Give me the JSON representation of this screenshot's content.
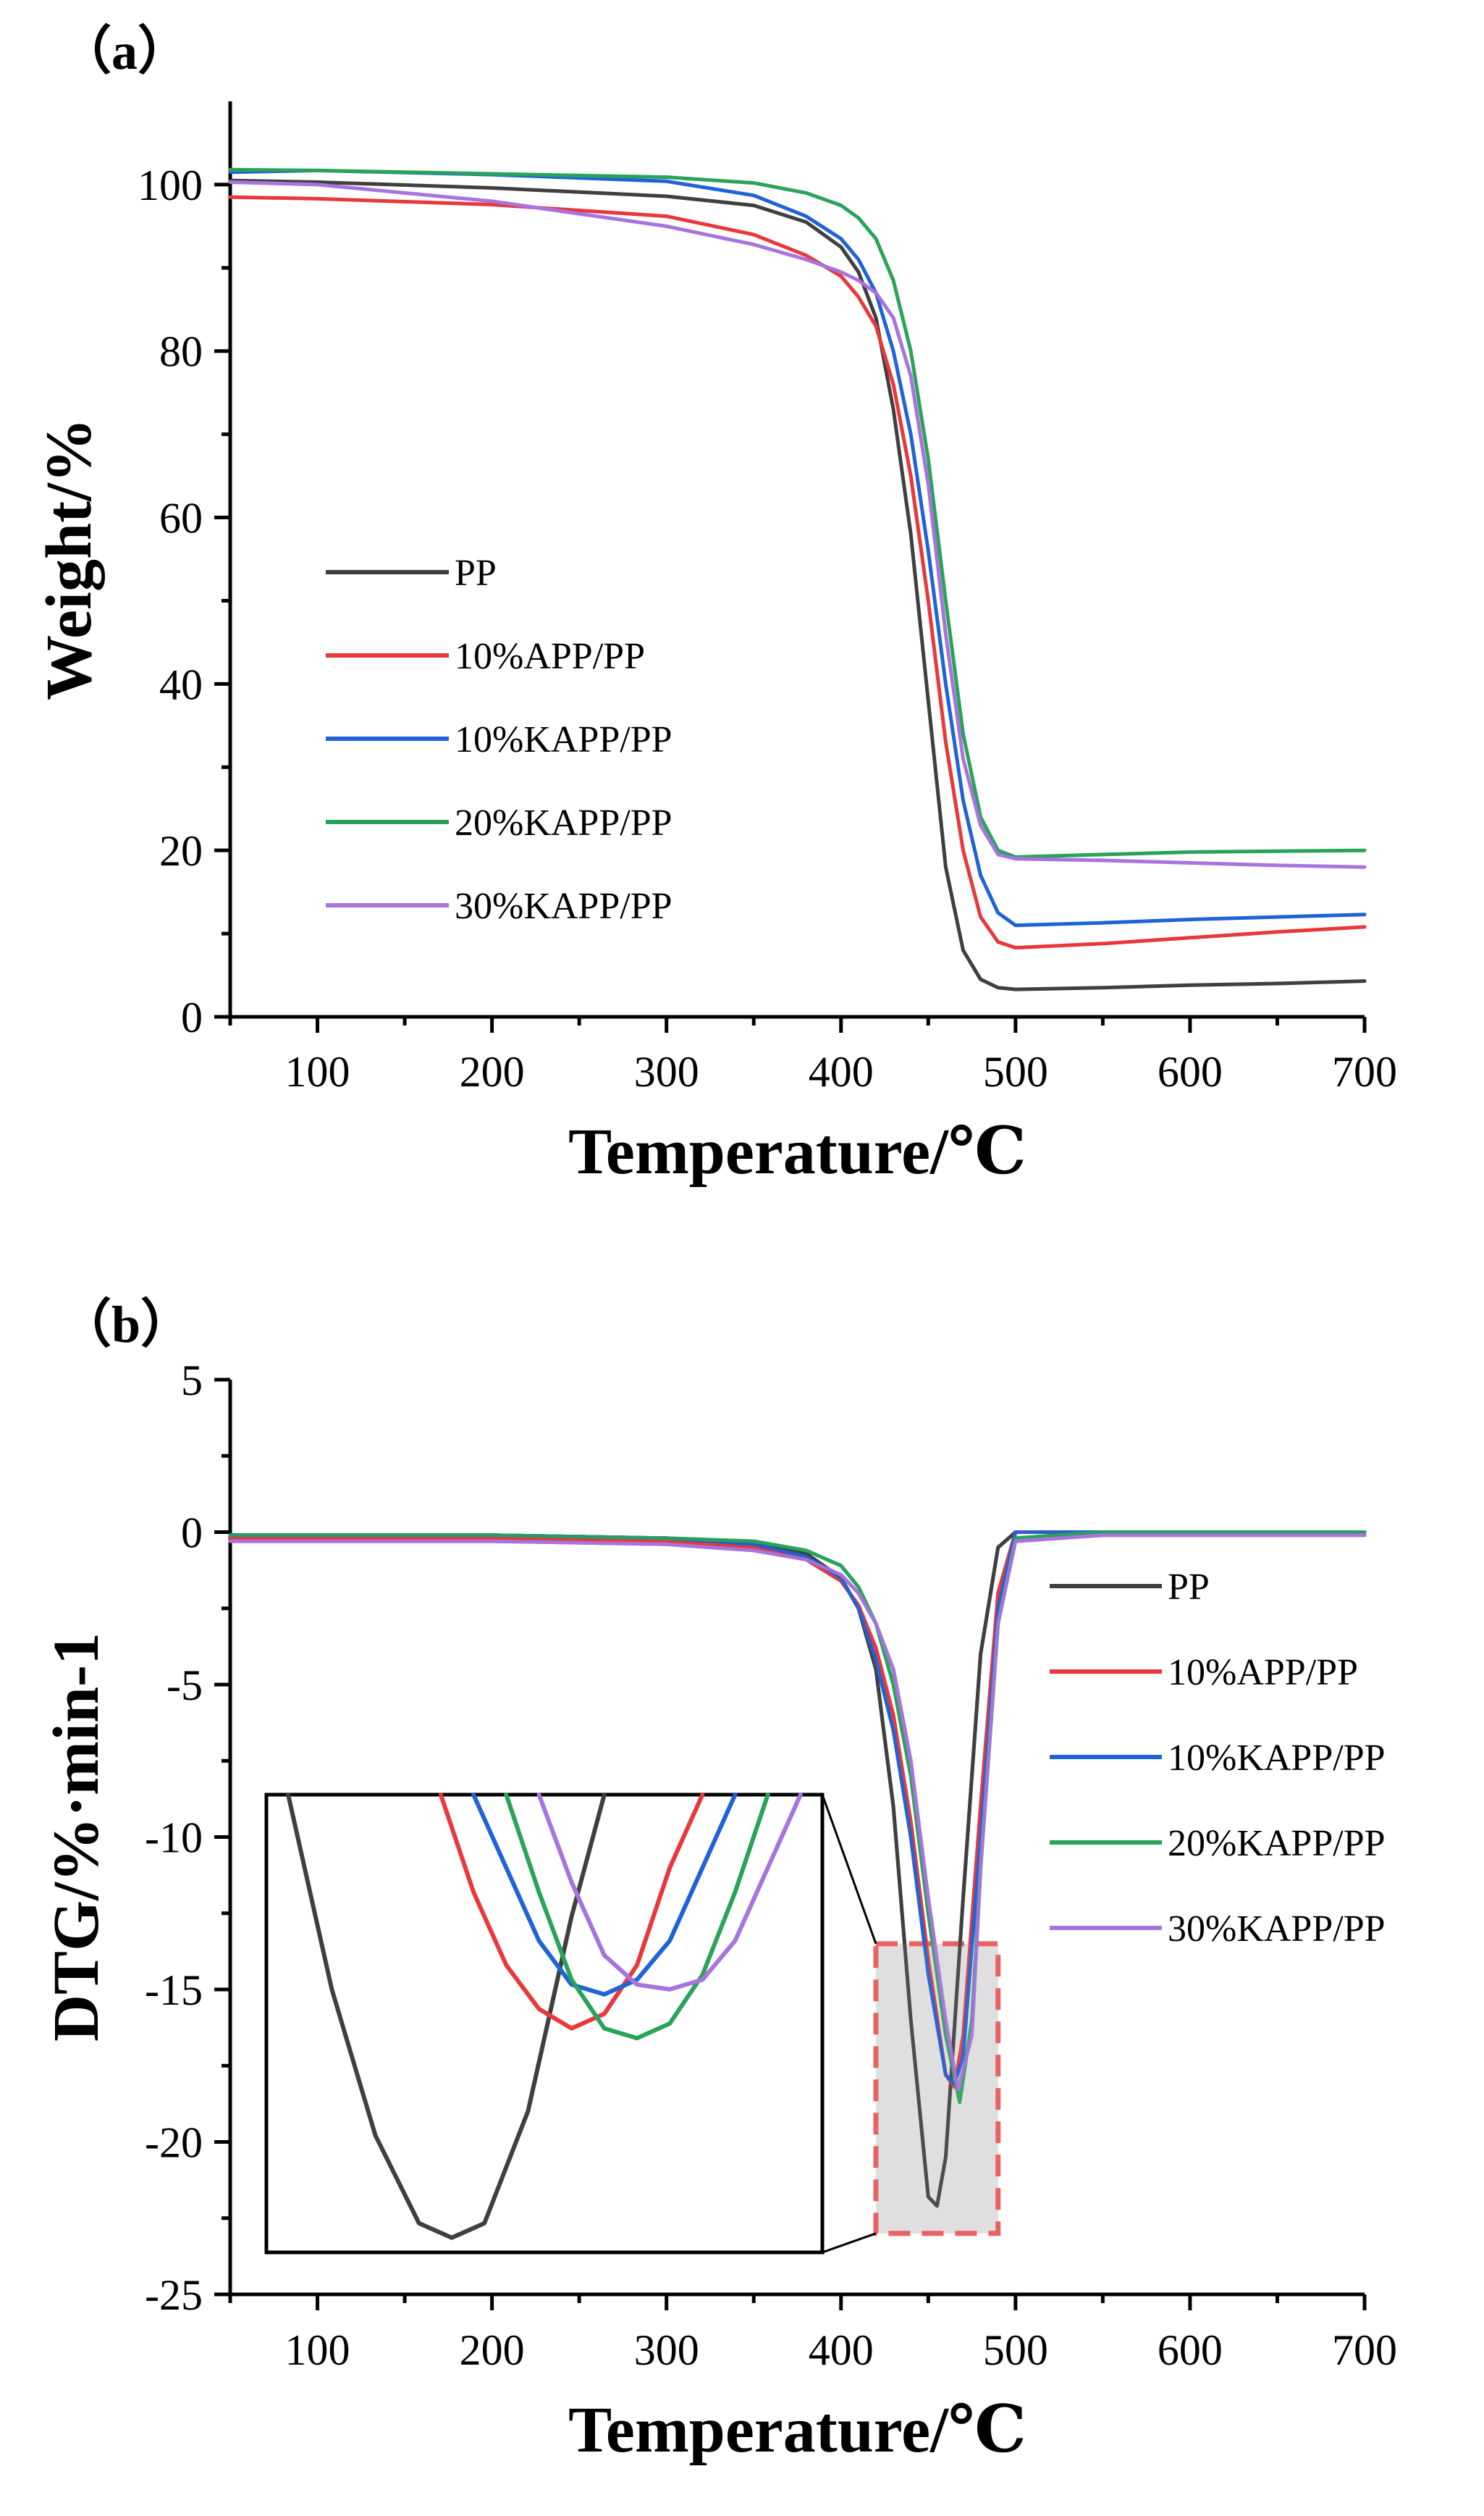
{
  "colors": {
    "PP": "#3f3f3f",
    "10%APP/PP": "#e8383b",
    "10%KAPP/PP": "#1f63d6",
    "20%KAPP/PP": "#2aa35a",
    "30%KAPP/PP": "#a873dd",
    "highlight_box_edge": "#e86464",
    "highlight_box_fill": "#d9d9d9"
  },
  "chart_data": [
    {
      "type": "line",
      "panel_label": "（a）",
      "title": "",
      "xlabel": "Temperature/℃",
      "ylabel": "Weight/%",
      "xlim": [
        50,
        700
      ],
      "ylim": [
        0,
        110
      ],
      "xticks": [
        "100",
        "200",
        "300",
        "400",
        "500",
        "600",
        "700"
      ],
      "yticks": [
        "0",
        "20",
        "40",
        "60",
        "80",
        "100"
      ],
      "xtick_values": [
        100,
        200,
        300,
        400,
        500,
        600,
        700
      ],
      "ytick_values": [
        0,
        20,
        40,
        60,
        80,
        100
      ],
      "legend_position": "center-left",
      "series": [
        {
          "name": "PP",
          "x": [
            50,
            100,
            200,
            300,
            350,
            380,
            400,
            410,
            420,
            430,
            440,
            450,
            460,
            470,
            480,
            490,
            500,
            550,
            600,
            650,
            700
          ],
          "y": [
            100.5,
            100.3,
            99.6,
            98.6,
            97.5,
            95.5,
            92.5,
            89.5,
            84,
            73,
            58,
            38,
            18,
            8,
            4.5,
            3.5,
            3.3,
            3.5,
            3.8,
            4.0,
            4.3
          ]
        },
        {
          "name": "10%APP/PP",
          "x": [
            50,
            100,
            200,
            300,
            350,
            380,
            400,
            410,
            420,
            430,
            440,
            450,
            460,
            470,
            480,
            490,
            500,
            550,
            600,
            650,
            700
          ],
          "y": [
            98.5,
            98.3,
            97.6,
            96.2,
            94,
            91.5,
            89,
            86.5,
            83,
            76,
            65,
            50,
            33,
            20,
            12,
            9,
            8.3,
            8.8,
            9.5,
            10.2,
            10.8
          ]
        },
        {
          "name": "10%KAPP/PP",
          "x": [
            50,
            100,
            200,
            300,
            350,
            380,
            400,
            410,
            420,
            430,
            440,
            450,
            460,
            470,
            480,
            490,
            500,
            550,
            600,
            650,
            700
          ],
          "y": [
            101.5,
            101.7,
            101.2,
            100.4,
            98.7,
            96.2,
            93.5,
            91,
            87,
            80,
            70,
            56,
            40,
            26,
            17,
            12.5,
            11,
            11.3,
            11.7,
            12,
            12.3
          ]
        },
        {
          "name": "20%KAPP/PP",
          "x": [
            50,
            100,
            200,
            300,
            350,
            380,
            400,
            410,
            420,
            430,
            440,
            450,
            460,
            470,
            480,
            490,
            500,
            550,
            600,
            650,
            700
          ],
          "y": [
            101.8,
            101.7,
            101.3,
            100.9,
            100.2,
            99,
            97.5,
            96,
            93.5,
            88.5,
            80,
            67,
            50,
            34,
            24,
            20,
            19.2,
            19.5,
            19.8,
            19.9,
            20
          ]
        },
        {
          "name": "30%KAPP/PP",
          "x": [
            50,
            100,
            200,
            300,
            350,
            380,
            400,
            410,
            420,
            430,
            440,
            450,
            460,
            470,
            480,
            490,
            500,
            550,
            600,
            650,
            700
          ],
          "y": [
            100.3,
            100,
            98,
            95,
            92.8,
            91,
            89.5,
            88.5,
            87,
            84,
            77,
            64,
            46,
            31,
            23,
            19.5,
            19,
            18.8,
            18.5,
            18.2,
            18
          ]
        }
      ]
    },
    {
      "type": "line",
      "panel_label": "（b）",
      "title": "",
      "xlabel": "Temperature/℃",
      "ylabel": "DTG/%·min-1",
      "xlim": [
        50,
        700
      ],
      "ylim": [
        -25,
        5
      ],
      "xticks": [
        "100",
        "200",
        "300",
        "400",
        "500",
        "600",
        "700"
      ],
      "yticks": [
        "5",
        "0",
        "-5",
        "-10",
        "-15",
        "-20",
        "-25"
      ],
      "xtick_values": [
        100,
        200,
        300,
        400,
        500,
        600,
        700
      ],
      "ytick_values": [
        5,
        0,
        -5,
        -10,
        -15,
        -20,
        -25
      ],
      "legend_position": "right",
      "series": [
        {
          "name": "PP",
          "x": [
            50,
            100,
            200,
            300,
            350,
            380,
            400,
            410,
            420,
            430,
            440,
            450,
            455,
            460,
            470,
            480,
            490,
            500,
            550,
            600,
            650,
            700
          ],
          "y": [
            -0.1,
            -0.1,
            -0.1,
            -0.2,
            -0.4,
            -0.7,
            -1.5,
            -2.5,
            -4.5,
            -9,
            -16,
            -21.8,
            -22.1,
            -20.5,
            -12,
            -4,
            -0.5,
            0,
            0,
            0,
            0,
            0
          ]
        },
        {
          "name": "10%APP/PP",
          "x": [
            50,
            100,
            200,
            300,
            350,
            380,
            400,
            410,
            420,
            430,
            440,
            450,
            460,
            465,
            470,
            480,
            490,
            500,
            550,
            600,
            650,
            700
          ],
          "y": [
            -0.2,
            -0.2,
            -0.2,
            -0.3,
            -0.5,
            -0.9,
            -1.6,
            -2.4,
            -3.8,
            -6,
            -9.5,
            -14,
            -17.8,
            -18.2,
            -16.5,
            -9,
            -2,
            0,
            0,
            0,
            0,
            0
          ]
        },
        {
          "name": "10%KAPP/PP",
          "x": [
            50,
            100,
            200,
            300,
            350,
            380,
            400,
            410,
            420,
            430,
            440,
            450,
            460,
            465,
            470,
            480,
            490,
            500,
            550,
            600,
            650,
            700
          ],
          "y": [
            -0.1,
            -0.1,
            -0.1,
            -0.2,
            -0.4,
            -0.8,
            -1.5,
            -2.5,
            -4.2,
            -6.5,
            -10,
            -14.5,
            -17.8,
            -18.1,
            -17.2,
            -10,
            -2.5,
            0,
            0,
            0,
            0,
            0
          ]
        },
        {
          "name": "20%KAPP/PP",
          "x": [
            50,
            100,
            200,
            300,
            350,
            380,
            400,
            410,
            420,
            430,
            440,
            450,
            460,
            468,
            475,
            480,
            490,
            500,
            550,
            600,
            650,
            700
          ],
          "y": [
            -0.1,
            -0.1,
            -0.1,
            -0.2,
            -0.3,
            -0.6,
            -1.1,
            -1.8,
            -3,
            -5,
            -8,
            -12.5,
            -16.5,
            -18.7,
            -16,
            -11,
            -3,
            -0.2,
            0,
            0,
            0,
            0
          ]
        },
        {
          "name": "30%KAPP/PP",
          "x": [
            50,
            100,
            200,
            300,
            350,
            380,
            400,
            410,
            420,
            430,
            440,
            450,
            460,
            467,
            475,
            480,
            490,
            500,
            550,
            600,
            650,
            700
          ],
          "y": [
            -0.3,
            -0.3,
            -0.3,
            -0.4,
            -0.6,
            -0.9,
            -1.4,
            -2,
            -3,
            -4.5,
            -7.5,
            -12,
            -16,
            -18.3,
            -16.5,
            -11,
            -3,
            -0.3,
            -0.1,
            -0.1,
            -0.1,
            -0.1
          ]
        }
      ],
      "inset": {
        "description_range_x": [
          420,
          490
        ],
        "description_range_y": [
          -23,
          -13.5
        ],
        "series": [
          {
            "name": "PP",
            "x": [
              438,
              442,
              446,
              450,
              453,
              456,
              460,
              464,
              467
            ],
            "y": [
              -13.5,
              -17.5,
              -20.5,
              -22.3,
              -22.6,
              -22.3,
              -20,
              -16,
              -13.5
            ]
          },
          {
            "name": "10%APP/PP",
            "x": [
              452,
              455,
              458,
              461,
              464,
              467,
              470,
              473,
              476
            ],
            "y": [
              -13.5,
              -15.5,
              -17,
              -17.9,
              -18.3,
              -18,
              -17,
              -15,
              -13.5
            ]
          },
          {
            "name": "10%KAPP/PP",
            "x": [
              455,
              458,
              461,
              464,
              467,
              470,
              473,
              476,
              479
            ],
            "y": [
              -13.5,
              -15,
              -16.5,
              -17.4,
              -17.6,
              -17.3,
              -16.5,
              -15,
              -13.5
            ]
          },
          {
            "name": "20%KAPP/PP",
            "x": [
              458,
              461,
              464,
              467,
              470,
              473,
              476,
              479,
              482
            ],
            "y": [
              -13.5,
              -15.5,
              -17.3,
              -18.3,
              -18.5,
              -18.2,
              -17.2,
              -15.5,
              -13.5
            ]
          },
          {
            "name": "30%KAPP/PP",
            "x": [
              461,
              464,
              467,
              470,
              473,
              476,
              479,
              482,
              485
            ],
            "y": [
              -13.5,
              -15.3,
              -16.8,
              -17.4,
              -17.5,
              -17.3,
              -16.5,
              -15,
              -13.5
            ]
          }
        ]
      }
    }
  ]
}
